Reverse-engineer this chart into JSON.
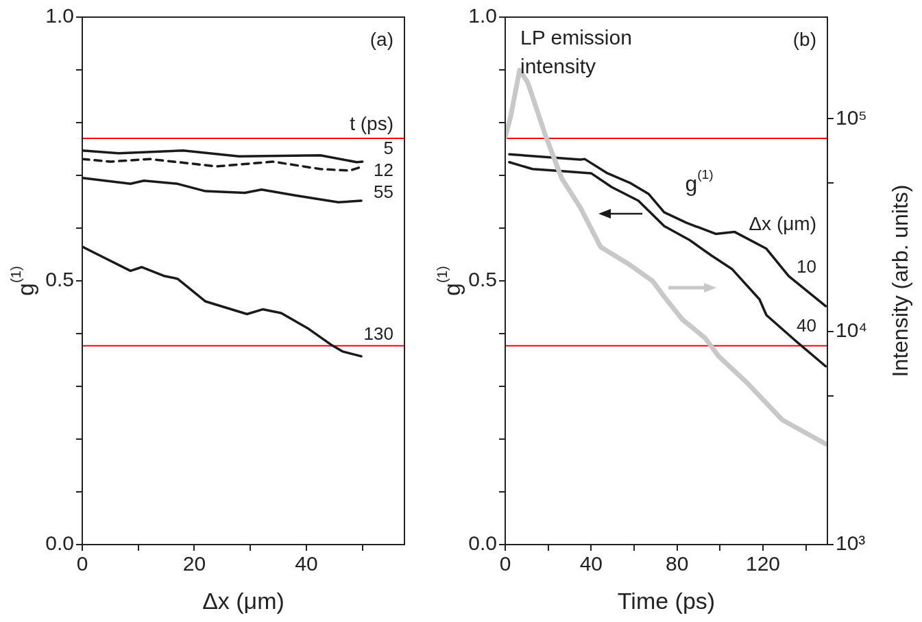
{
  "chart_data": [
    {
      "type": "line",
      "xlabel": "Δx (μm)",
      "ylabel": "g$^{(1)}$",
      "legend_title": "t (ps)",
      "xlim": [
        0,
        57.5
      ],
      "xticks": [
        0,
        {
          "value": 10,
          "label": null
        },
        20,
        {
          "value": 30,
          "label": null
        },
        40,
        {
          "value": 50,
          "label": null
        }
      ],
      "ylim": [
        0,
        1
      ],
      "yticks": [
        {
          "value": 0,
          "label": "0.0"
        },
        {
          "value": 0.1,
          "label": null
        },
        {
          "value": 0.2,
          "label": null
        },
        {
          "value": 0.3,
          "label": null
        },
        {
          "value": 0.4,
          "label": null
        },
        0.5,
        {
          "value": 0.6,
          "label": null
        },
        {
          "value": 0.7,
          "label": null
        },
        {
          "value": 0.8,
          "label": null
        },
        {
          "value": 0.9,
          "label": null
        },
        {
          "value": 1,
          "label": "1.0"
        }
      ],
      "series": [
        {
          "name": "5",
          "color": "#1a1a1a",
          "x": [
            0,
            6.5,
            18,
            28,
            42.5,
            49,
            50
          ],
          "values": [
            0.747,
            0.742,
            0.747,
            0.736,
            0.738,
            0.725,
            0.726
          ]
        },
        {
          "name": "12",
          "color": "#1a1a1a",
          "line_style": "dashed",
          "x": [
            0,
            5,
            12,
            24,
            34,
            42.5,
            47.7,
            49.8
          ],
          "values": [
            0.731,
            0.726,
            0.731,
            0.717,
            0.726,
            0.712,
            0.709,
            0.716
          ]
        },
        {
          "name": "55",
          "color": "#1a1a1a",
          "x": [
            0,
            8.6,
            11,
            17,
            22,
            29,
            32,
            38,
            45.7,
            49.8
          ],
          "values": [
            0.695,
            0.684,
            0.69,
            0.684,
            0.67,
            0.667,
            0.673,
            0.662,
            0.649,
            0.652
          ]
        },
        {
          "name": "130",
          "color": "#1a1a1a",
          "x": [
            0,
            2.4,
            8.6,
            10.6,
            14.7,
            17,
            22,
            29.4,
            32.2,
            35.5,
            40.4,
            44.4,
            46.5,
            49.8
          ],
          "values": [
            0.565,
            0.552,
            0.519,
            0.526,
            0.509,
            0.504,
            0.461,
            0.437,
            0.446,
            0.439,
            0.409,
            0.379,
            0.366,
            0.357
          ]
        }
      ],
      "ref_lines": [
        {
          "axis": "y",
          "value": 0.77,
          "color": "#ff0000"
        },
        {
          "axis": "y",
          "value": 0.377,
          "color": "#ff0000"
        }
      ],
      "annotations": [
        "(a)"
      ]
    },
    {
      "type": "line",
      "xlabel": "Time (ps)",
      "ylabel": "g$^{(1)}$",
      "y2label": "Intensity (arb. units)",
      "legend_title": "Δx (μm)",
      "log": "y2",
      "xlim": [
        0,
        150
      ],
      "xticks": [
        0,
        {
          "value": 20,
          "label": null
        },
        40,
        {
          "value": 60,
          "label": null
        },
        80,
        {
          "value": 100,
          "label": null
        },
        120,
        {
          "value": 140,
          "label": null
        }
      ],
      "ylim": [
        0,
        1
      ],
      "yticks": [
        {
          "value": 0,
          "label": "0.0"
        },
        {
          "value": 0.1,
          "label": null
        },
        {
          "value": 0.2,
          "label": null
        },
        {
          "value": 0.3,
          "label": null
        },
        {
          "value": 0.4,
          "label": null
        },
        0.5,
        {
          "value": 0.6,
          "label": null
        },
        {
          "value": 0.7,
          "label": null
        },
        {
          "value": 0.8,
          "label": null
        },
        {
          "value": 0.9,
          "label": null
        },
        {
          "value": 1,
          "label": "1.0"
        }
      ],
      "y2lim": [
        1000,
        300000
      ],
      "y2ticks": [
        {
          "value": 1000,
          "label": "10³"
        },
        {
          "value": 5000,
          "label": null
        },
        {
          "value": 10000,
          "label": "10⁴"
        },
        {
          "value": 50000,
          "label": null
        },
        {
          "value": 100000,
          "label": "10⁵"
        }
      ],
      "series": [
        {
          "name": "LP emission intensity",
          "color": "#c8c8c8",
          "axis": "y2",
          "x": [
            0,
            2.5,
            6.7,
            10.5,
            19,
            26.3,
            35,
            44.4,
            58,
            68.6,
            74,
            82.5,
            93,
            99.4,
            113,
            129,
            149.2
          ],
          "values": [
            82000,
            102000,
            169000,
            148000,
            82000,
            52500,
            38200,
            25000,
            20600,
            17300,
            14600,
            11400,
            9350,
            7660,
            5700,
            3850,
            2970
          ]
        },
        {
          "name": "10",
          "color": "#1a1a1a",
          "x": [
            1.9,
            21,
            35,
            37,
            47.6,
            58,
            66.7,
            74,
            84.5,
            98,
            106.7,
            121.6,
            132,
            149.2
          ],
          "values": [
            0.74,
            0.734,
            0.73,
            0.731,
            0.704,
            0.686,
            0.665,
            0.63,
            0.61,
            0.589,
            0.593,
            0.561,
            0.509,
            0.452
          ]
        },
        {
          "name": "40",
          "color": "#1a1a1a",
          "x": [
            1.9,
            12.7,
            26.3,
            40,
            49.5,
            62,
            74,
            85.6,
            96,
            105.7,
            118.4,
            121.6,
            135,
            149.2
          ],
          "values": [
            0.725,
            0.712,
            0.708,
            0.704,
            0.678,
            0.652,
            0.604,
            0.578,
            0.548,
            0.522,
            0.465,
            0.435,
            0.387,
            0.338
          ]
        }
      ],
      "ref_lines": [
        {
          "axis": "y",
          "value": 0.77,
          "color": "#ff0000"
        },
        {
          "axis": "y",
          "value": 0.377,
          "color": "#ff0000"
        }
      ],
      "annotations": [
        "(b)",
        "g$^{(1)}$"
      ]
    }
  ]
}
